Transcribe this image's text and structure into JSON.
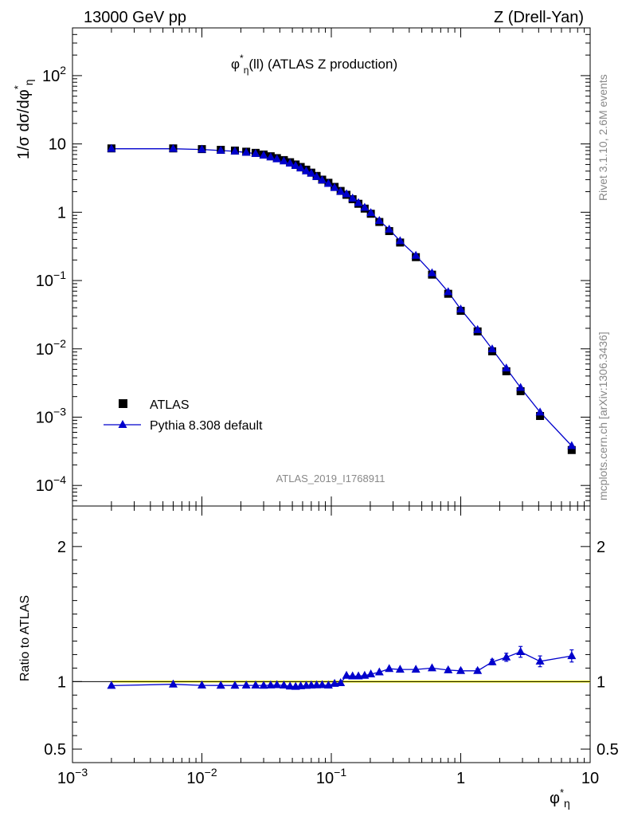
{
  "header": {
    "left": "13000 GeV pp",
    "right": "Z (Drell-Yan)"
  },
  "side": {
    "top": "Rivet 3.1.10,  2.6M events",
    "bottom": "mcplots.cern.ch [arXiv:1306.3436]"
  },
  "watermark": "ATLAS_2019_I1768911",
  "colors": {
    "data": "#000000",
    "mc": "#0000cc",
    "band": "#ffff00"
  },
  "chart_data": [
    {
      "type": "scatter",
      "title": "φ*η(ll) (ATLAS Z production)",
      "ylabel": "1/σ dσ/dφ*η",
      "xlabel": "φ*η",
      "xscale": "log",
      "yscale": "log",
      "xlim": [
        0.001,
        10
      ],
      "ylim": [
        5e-05,
        500
      ],
      "x_tick_labels": [
        "10^-3",
        "10^-2",
        "10^-1",
        "1",
        "10"
      ],
      "y_tick_labels": [
        "10^-4",
        "10^-3",
        "10^-2",
        "10^-1",
        "1",
        "10",
        "10^2"
      ],
      "legend": {
        "position": "bottom-left",
        "entries": [
          "ATLAS",
          "Pythia 8.308 default"
        ]
      },
      "x": [
        0.002,
        0.006,
        0.01,
        0.014,
        0.018,
        0.022,
        0.026,
        0.03,
        0.034,
        0.038,
        0.043,
        0.048,
        0.053,
        0.058,
        0.064,
        0.07,
        0.077,
        0.085,
        0.095,
        0.106,
        0.118,
        0.131,
        0.146,
        0.162,
        0.181,
        0.202,
        0.235,
        0.28,
        0.34,
        0.45,
        0.6,
        0.8,
        1.0,
        1.35,
        1.75,
        2.25,
        2.9,
        4.1,
        7.2
      ],
      "series": [
        {
          "name": "ATLAS",
          "values": [
            8.6,
            8.6,
            8.4,
            8.2,
            8.0,
            7.7,
            7.4,
            7.0,
            6.6,
            6.2,
            5.8,
            5.4,
            5.0,
            4.6,
            4.2,
            3.8,
            3.4,
            3.0,
            2.7,
            2.35,
            2.05,
            1.8,
            1.55,
            1.33,
            1.13,
            0.95,
            0.72,
            0.53,
            0.36,
            0.22,
            0.122,
            0.064,
            0.036,
            0.018,
            0.0092,
            0.0047,
            0.0024,
            0.00104,
            0.00033
          ]
        },
        {
          "name": "Pythia 8.308 default",
          "values": [
            8.5,
            8.5,
            8.3,
            8.0,
            7.8,
            7.5,
            7.2,
            6.8,
            6.4,
            6.0,
            5.6,
            5.2,
            4.8,
            4.4,
            4.0,
            3.7,
            3.3,
            2.95,
            2.62,
            2.28,
            2.0,
            1.85,
            1.6,
            1.37,
            1.17,
            0.98,
            0.75,
            0.56,
            0.38,
            0.232,
            0.129,
            0.068,
            0.038,
            0.019,
            0.0099,
            0.0052,
            0.0027,
            0.00118,
            0.00038
          ]
        }
      ]
    },
    {
      "type": "line",
      "ylabel": "Ratio to ATLAS",
      "xlabel": "φ*η",
      "xscale": "log",
      "xlim": [
        0.001,
        10
      ],
      "ylim": [
        0.4,
        2.3
      ],
      "y_tick_labels": [
        "0.5",
        "1",
        "2"
      ],
      "x": [
        0.002,
        0.006,
        0.01,
        0.014,
        0.018,
        0.022,
        0.026,
        0.03,
        0.034,
        0.038,
        0.043,
        0.048,
        0.053,
        0.058,
        0.064,
        0.07,
        0.077,
        0.085,
        0.095,
        0.106,
        0.118,
        0.131,
        0.146,
        0.162,
        0.181,
        0.202,
        0.235,
        0.28,
        0.34,
        0.45,
        0.6,
        0.8,
        1.0,
        1.35,
        1.75,
        2.25,
        2.9,
        4.1,
        7.2
      ],
      "series": [
        {
          "name": "Pythia 8.308 default",
          "values": [
            0.97,
            0.98,
            0.972,
            0.971,
            0.971,
            0.972,
            0.972,
            0.971,
            0.973,
            0.975,
            0.972,
            0.965,
            0.963,
            0.967,
            0.97,
            0.972,
            0.974,
            0.975,
            0.972,
            0.985,
            0.99,
            1.045,
            1.04,
            1.04,
            1.045,
            1.055,
            1.07,
            1.095,
            1.09,
            1.09,
            1.1,
            1.085,
            1.08,
            1.08,
            1.145,
            1.18,
            1.22,
            1.15,
            1.19
          ],
          "errors": [
            0.005,
            0.005,
            0.005,
            0.005,
            0.005,
            0.005,
            0.005,
            0.005,
            0.005,
            0.005,
            0.005,
            0.005,
            0.005,
            0.005,
            0.005,
            0.005,
            0.005,
            0.005,
            0.005,
            0.005,
            0.005,
            0.008,
            0.008,
            0.008,
            0.008,
            0.008,
            0.008,
            0.01,
            0.01,
            0.01,
            0.01,
            0.012,
            0.012,
            0.015,
            0.02,
            0.03,
            0.04,
            0.04,
            0.045
          ]
        }
      ]
    }
  ]
}
